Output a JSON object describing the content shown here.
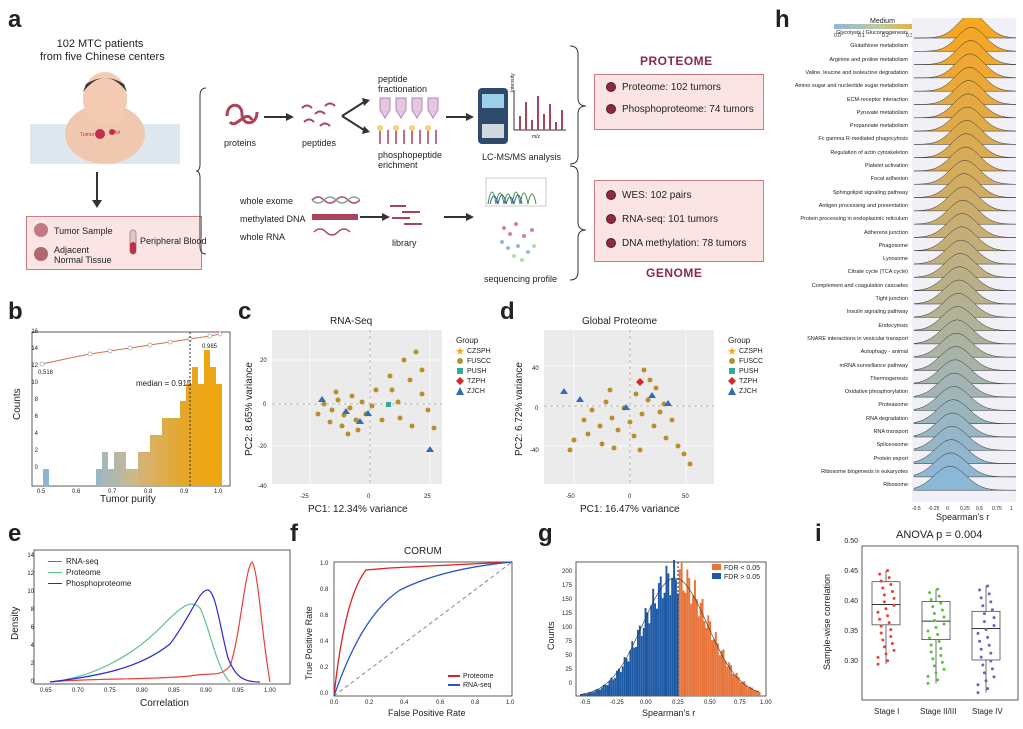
{
  "panels": {
    "a": "a",
    "b": "b",
    "c": "c",
    "d": "d",
    "e": "e",
    "f": "f",
    "g": "g",
    "h": "h",
    "i": "i"
  },
  "a": {
    "patients_line1": "102 MTC patients",
    "patients_line2": "from five Chinese centers",
    "tumor_small": "Tumor",
    "met_small": "Met",
    "legend": {
      "tumor_sample": "Tumor Sample",
      "adjacent1": "Adjacent",
      "adjacent2": "Normal Tissue",
      "blood": "Peripheral Blood"
    },
    "proteins": "proteins",
    "peptides": "peptides",
    "fractionation1": "peptide",
    "fractionation2": "fractionation",
    "phospho1": "phosphopeptide",
    "phospho2": "erichment",
    "lcms": "LC-MS/MS analysis",
    "intensity": "Intensity",
    "mz": "m/z",
    "whole_exome": "whole exome",
    "methylated": "methylated DNA",
    "whole_rna": "whole RNA",
    "library": "library",
    "seq_profile": "sequencing profile",
    "proteome_header": "PROTEOME",
    "genome_header": "GENOME",
    "proteome_items": [
      "Proteome: 102 tumors",
      "Phosphoproteome: 74 tumors"
    ],
    "genome_items": [
      "WES: 102 pairs",
      "RNA-seq: 101 tumors",
      "DNA methylation: 78 tumors"
    ]
  },
  "b": {
    "xlabel": "Tumor purity",
    "ylabel": "Counts",
    "median_label": "median = 0.915",
    "low_label": "0.516",
    "high_label": "0.985",
    "xticks": [
      "0.5",
      "0.6",
      "0.7",
      "0.8",
      "0.9",
      "1.0"
    ],
    "yticks": [
      "0",
      "2",
      "4",
      "6",
      "8",
      "10",
      "12",
      "14",
      "16"
    ]
  },
  "c": {
    "title": "RNA-Seq",
    "xlabel": "PC1: 12.34% variance",
    "ylabel": "PC2: 8.65% variance",
    "xticks": [
      "-25",
      "0",
      "25"
    ],
    "yticks": [
      "-40",
      "-20",
      "0",
      "20"
    ]
  },
  "d": {
    "title": "Global Proteome",
    "xlabel": "PC1: 16.47% variance",
    "ylabel": "PC2: 6.72% variance",
    "xticks": [
      "-50",
      "0",
      "50"
    ],
    "yticks": [
      "-40",
      "0",
      "40"
    ]
  },
  "legend_cd": {
    "title": "Group",
    "items": [
      {
        "label": "CZSPH",
        "color": "#f5a623",
        "shape": "star"
      },
      {
        "label": "FUSCC",
        "color": "#b8902a",
        "shape": "circle"
      },
      {
        "label": "PUSH",
        "color": "#3aa6a0",
        "shape": "square"
      },
      {
        "label": "TZPH",
        "color": "#d62728",
        "shape": "diamond"
      },
      {
        "label": "ZJCH",
        "color": "#2f6db5",
        "shape": "triangle"
      }
    ]
  },
  "e": {
    "xlabel": "Correlation",
    "ylabel": "Density",
    "legend": [
      {
        "label": "RNA-seq",
        "color": "#e8413a"
      },
      {
        "label": "Proteome",
        "color": "#5cc08a"
      },
      {
        "label": "Phosphoproteome",
        "color": "#2a2ad0"
      }
    ],
    "xticks": [
      "0.65",
      "0.70",
      "0.75",
      "0.80",
      "0.85",
      "0.90",
      "0.95",
      "1.00"
    ],
    "yticks": [
      "0",
      "2",
      "4",
      "6",
      "8",
      "10",
      "12",
      "14"
    ]
  },
  "f": {
    "title": "CORUM",
    "xlabel": "False Positive Rate",
    "ylabel": "True Positive Rate",
    "legend": [
      {
        "label": "Proteome",
        "color": "#e02020"
      },
      {
        "label": "RNA-seq",
        "color": "#2a55c8"
      }
    ],
    "xticks": [
      "0.0",
      "0.2",
      "0.4",
      "0.6",
      "0.8",
      "1.0"
    ],
    "yticks": [
      "0.0",
      "0.2",
      "0.4",
      "0.6",
      "0.8",
      "1.0"
    ]
  },
  "g": {
    "xlabel": "Spearman's r",
    "ylabel": "Counts",
    "legend": [
      {
        "label": "FDR < 0.05",
        "color": "#e8743a"
      },
      {
        "label": "FDR > 0.05",
        "color": "#1f5aa6"
      }
    ],
    "xticks": [
      "-0.5",
      "-0.25",
      "0.00",
      "0.25",
      "0.50",
      "0.75",
      "1.00"
    ],
    "yticks": [
      "0",
      "25",
      "50",
      "75",
      "100",
      "125",
      "150",
      "175",
      "200"
    ]
  },
  "h": {
    "colorbar_label": "Medium",
    "colorbar_ticks": [
      "0.0",
      "0.1",
      "0.2",
      "0.3"
    ],
    "xlabel": "Spearman's r",
    "xticks": [
      "-0.5",
      "-0.25",
      "0",
      "0.25",
      "0.5",
      "0.75",
      "1"
    ],
    "pathways": [
      "Glycolysis / Gluconeogenesis",
      "Glutathione metabolism",
      "Arginine and proline metabolism",
      "Valine, leucine and isoleucine degradation",
      "Amino sugar and nucleotide sugar metabolism",
      "ECM-receptor interaction",
      "Pyruvate metabolism",
      "Propanoate metabolism",
      "Fc gamma R-mediated phagocytosis",
      "Regulation of actin cytoskeleton",
      "Platelet activation",
      "Focal adhesion",
      "Sphingolipid signaling pathway",
      "Antigen processing and presentation",
      "Protein processing in endoplasmic reticulum",
      "Adherens junction",
      "Phagosome",
      "Lysosome",
      "Citrate cycle (TCA cycle)",
      "Complement and coagulation cascades",
      "Tight junction",
      "Insulin signaling pathway",
      "Endocytosis",
      "SNARE interactions in vesicular transport",
      "Autophagy - animal",
      "mRNA surveillance pathway",
      "Thermogenesis",
      "Oxidative phosphorylation",
      "Proteasome",
      "RNA degradation",
      "RNA transport",
      "Spliceosome",
      "Protein export",
      "Ribosome biogenesis in eukaryotes",
      "Ribosome"
    ]
  },
  "i": {
    "title": "ANOVA  p = 0.004",
    "ylabel": "Sample-wise correlation",
    "groups": [
      {
        "label": "Stage I",
        "color": "#e8413a",
        "q1": 0.382,
        "median": 0.415,
        "q3": 0.452,
        "min": 0.318,
        "max": 0.47
      },
      {
        "label": "Stage II/III",
        "color": "#5cc040",
        "q1": 0.358,
        "median": 0.388,
        "q3": 0.42,
        "min": 0.287,
        "max": 0.44
      },
      {
        "label": "Stage IV",
        "color": "#7a5cc0",
        "q1": 0.325,
        "median": 0.376,
        "q3": 0.404,
        "min": 0.272,
        "max": 0.445
      }
    ],
    "yticks": [
      "0.30",
      "0.35",
      "0.40",
      "0.45",
      "0.50"
    ]
  }
}
